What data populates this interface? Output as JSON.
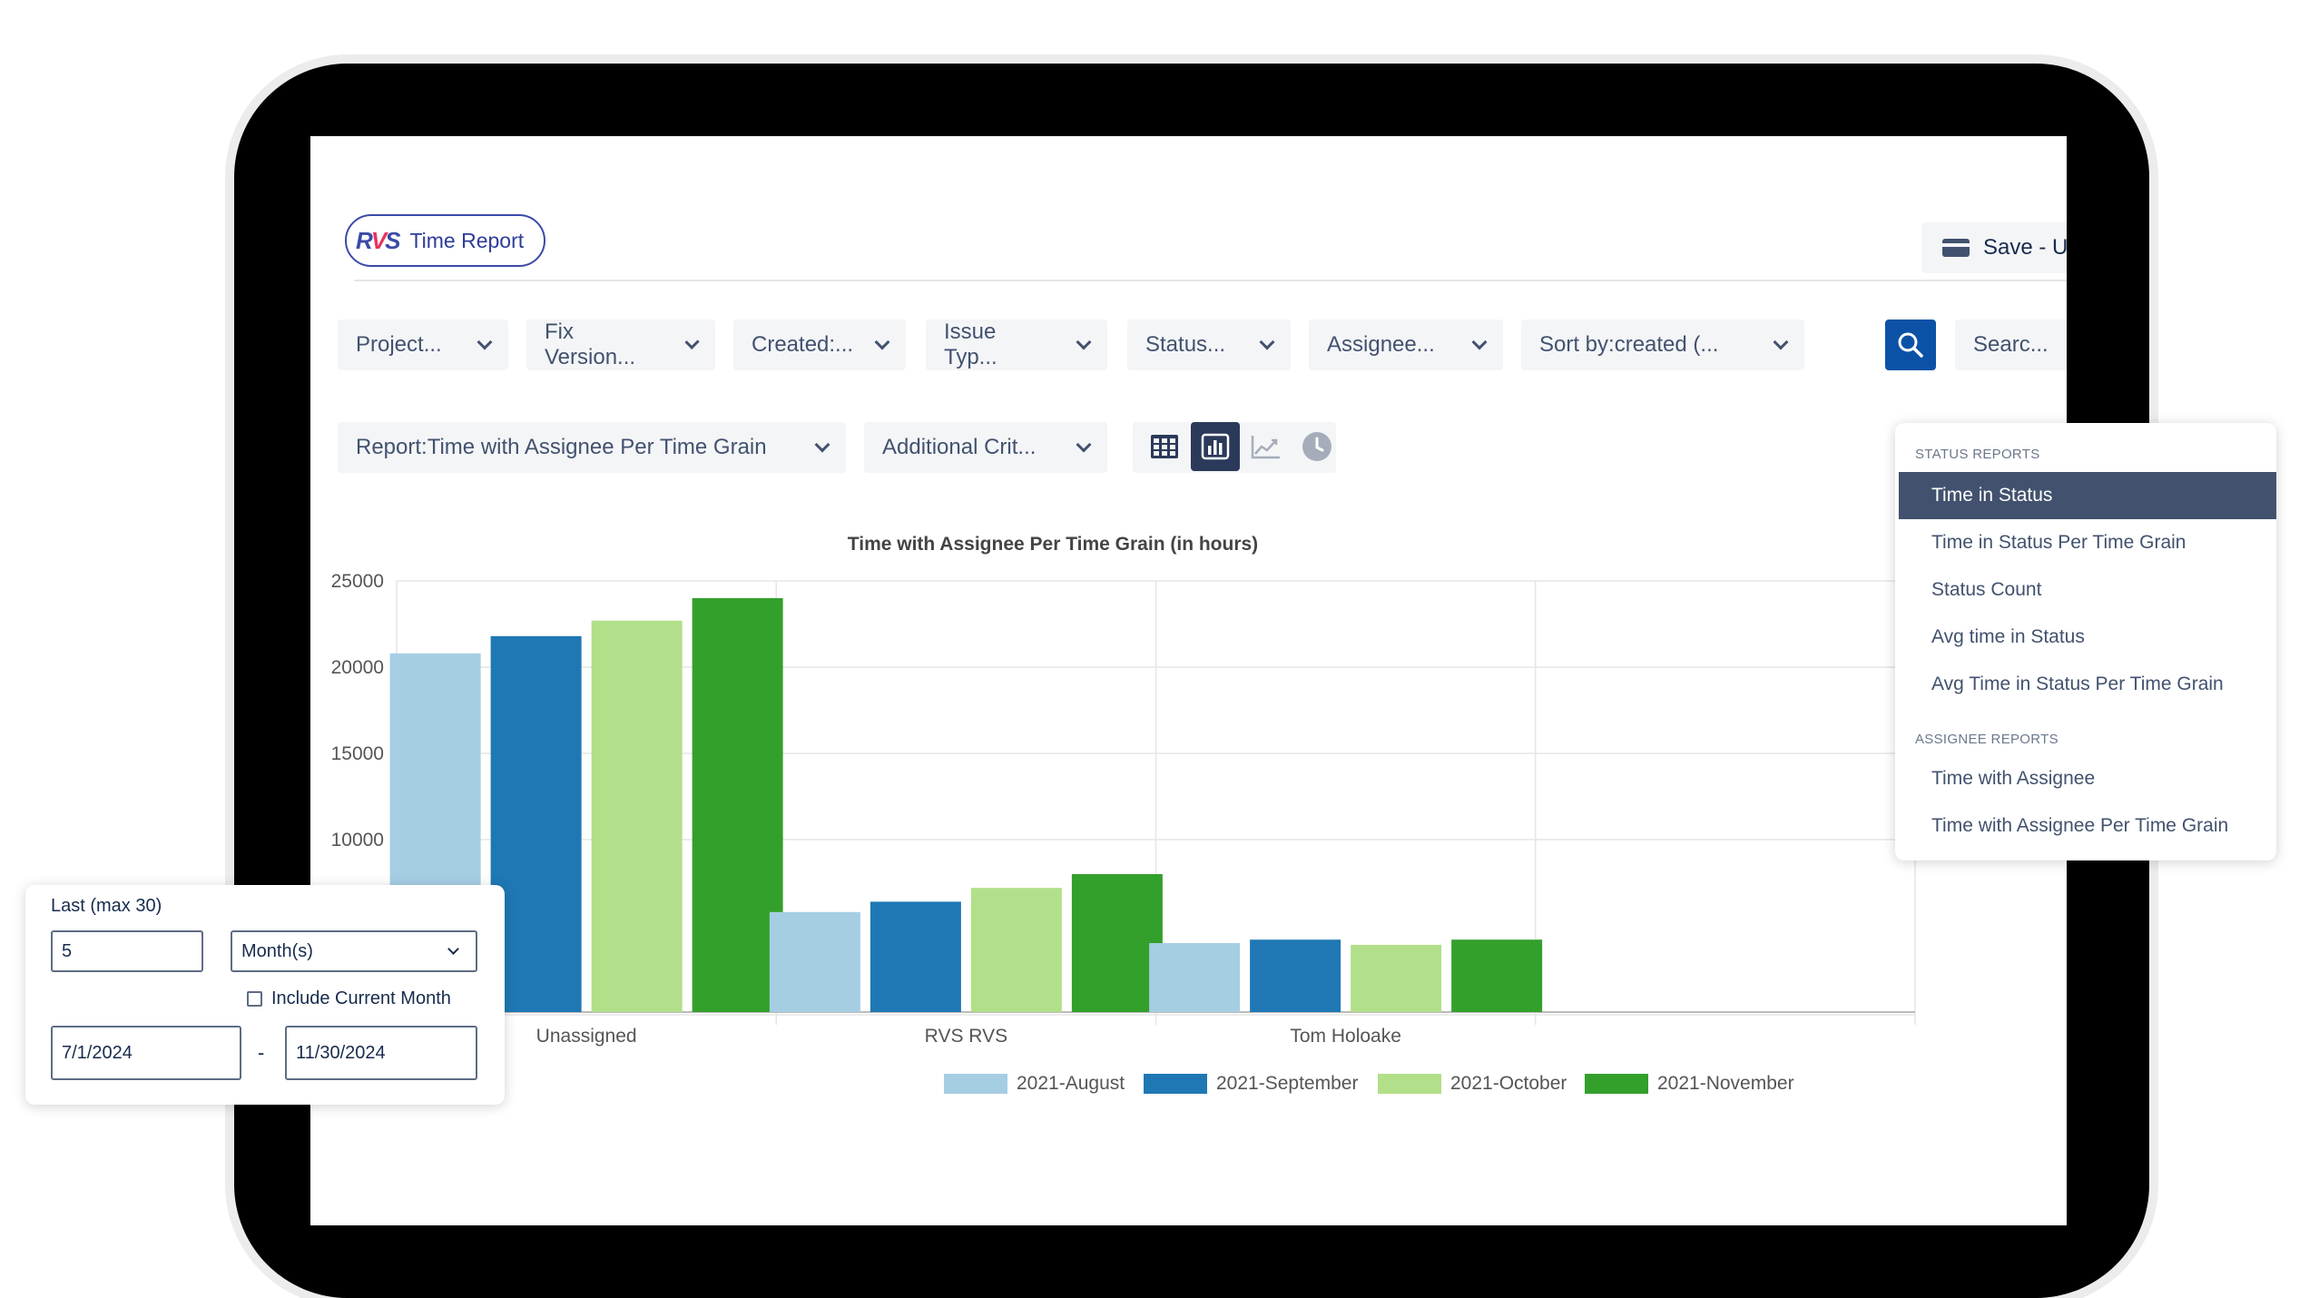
{
  "header": {
    "app_title": "Time Report",
    "logo_text": "RVS",
    "save_label": "Save - Ur"
  },
  "filters": [
    {
      "label": "Project..."
    },
    {
      "label": "Fix Version..."
    },
    {
      "label": "Created:..."
    },
    {
      "label": "Issue Typ..."
    },
    {
      "label": "Status..."
    },
    {
      "label": "Assignee..."
    },
    {
      "label": "Sort by:created (..."
    }
  ],
  "search": {
    "label": "Searc..."
  },
  "report_bar": {
    "report_label": "Report:Time with Assignee Per Time Grain",
    "additional_label": "Additional Crit..."
  },
  "view_buttons": [
    {
      "name": "table-view",
      "icon": "grid-icon",
      "active": false
    },
    {
      "name": "bar-chart-view",
      "icon": "bar-chart-icon",
      "active": true
    },
    {
      "name": "line-chart-view",
      "icon": "line-chart-icon",
      "active": false
    },
    {
      "name": "clock-view",
      "icon": "clock-icon",
      "active": false
    }
  ],
  "chart_data": {
    "type": "bar",
    "title": "Time with Assignee Per Time Grain (in hours)",
    "xlabel": "",
    "ylabel": "",
    "categories": [
      "Unassigned",
      "RVS RVS",
      "Tom Holoake"
    ],
    "ylim": [
      0,
      25000
    ],
    "yticks": [
      10000,
      15000,
      20000,
      25000
    ],
    "grid": true,
    "legend_position": "bottom",
    "series": [
      {
        "name": "2021-August",
        "color": "#a6cee3",
        "values": [
          20800,
          5800,
          4000
        ]
      },
      {
        "name": "2021-September",
        "color": "#1f78b4",
        "values": [
          21800,
          6400,
          4200
        ]
      },
      {
        "name": "2021-October",
        "color": "#b2df8a",
        "values": [
          22700,
          7200,
          3900
        ]
      },
      {
        "name": "2021-November",
        "color": "#33a02c",
        "values": [
          24000,
          8000,
          4200
        ]
      }
    ]
  },
  "report_menu": {
    "groups": [
      {
        "heading": "STATUS REPORTS",
        "items": [
          {
            "label": "Time in Status",
            "selected": true
          },
          {
            "label": "Time in Status Per Time Grain",
            "selected": false
          },
          {
            "label": "Status Count",
            "selected": false
          },
          {
            "label": "Avg time in Status",
            "selected": false
          },
          {
            "label": "Avg Time in Status Per Time Grain",
            "selected": false
          }
        ]
      },
      {
        "heading": "ASSIGNEE REPORTS",
        "items": [
          {
            "label": "Time with Assignee",
            "selected": false
          },
          {
            "label": "Time with Assignee Per Time Grain",
            "selected": false
          }
        ]
      }
    ]
  },
  "date_panel": {
    "last_label": "Last (max 30)",
    "last_value": "5",
    "unit_value": "Month(s)",
    "include_current_label": "Include Current Month",
    "include_current_checked": false,
    "start_date": "7/1/2024",
    "separator": "-",
    "end_date": "11/30/2024"
  }
}
